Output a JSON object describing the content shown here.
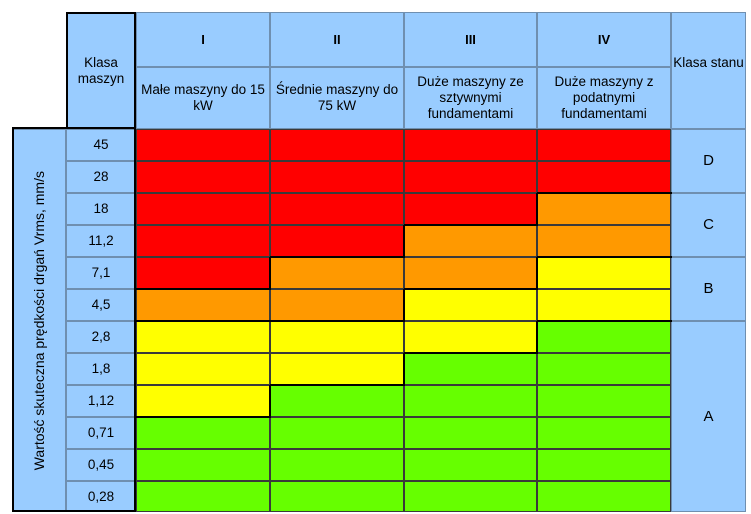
{
  "header": {
    "machine_class_label": "Klasa maszyn",
    "state_class_label": "Klasa stanu",
    "columns": [
      {
        "numeral": "I",
        "description": "Małe maszyny do 15 kW"
      },
      {
        "numeral": "II",
        "description": "Średnie maszyny do 75 kW"
      },
      {
        "numeral": "III",
        "description": "Duże maszyny ze sztywnymi fundamentami"
      },
      {
        "numeral": "IV",
        "description": "Duże maszyny z podatnymi fundamentami"
      }
    ]
  },
  "axis_label": "Wartość skuteczna prędkości drgań Vrms, mm/s",
  "rows": [
    "45",
    "28",
    "18",
    "11,2",
    "7,1",
    "4,5",
    "2,8",
    "1,8",
    "1,12",
    "0,71",
    "0,45",
    "0,28"
  ],
  "zone_grid": [
    [
      "D",
      "D",
      "D",
      "D"
    ],
    [
      "D",
      "D",
      "D",
      "D"
    ],
    [
      "D",
      "D",
      "D",
      "C"
    ],
    [
      "D",
      "D",
      "C",
      "C"
    ],
    [
      "D",
      "C",
      "C",
      "B"
    ],
    [
      "C",
      "C",
      "B",
      "B"
    ],
    [
      "B",
      "B",
      "B",
      "A"
    ],
    [
      "B",
      "B",
      "A",
      "A"
    ],
    [
      "B",
      "A",
      "A",
      "A"
    ],
    [
      "A",
      "A",
      "A",
      "A"
    ],
    [
      "A",
      "A",
      "A",
      "A"
    ],
    [
      "A",
      "A",
      "A",
      "A"
    ]
  ],
  "zone_colors": {
    "D": "#ff0000",
    "C": "#ff9900",
    "B": "#ffff00",
    "A": "#66ff00"
  },
  "state_classes": [
    {
      "label": "D",
      "rows": [
        0,
        1
      ]
    },
    {
      "label": "C",
      "rows": [
        2,
        3
      ]
    },
    {
      "label": "B",
      "rows": [
        4,
        5
      ]
    },
    {
      "label": "A",
      "rows": [
        6,
        11
      ]
    }
  ]
}
